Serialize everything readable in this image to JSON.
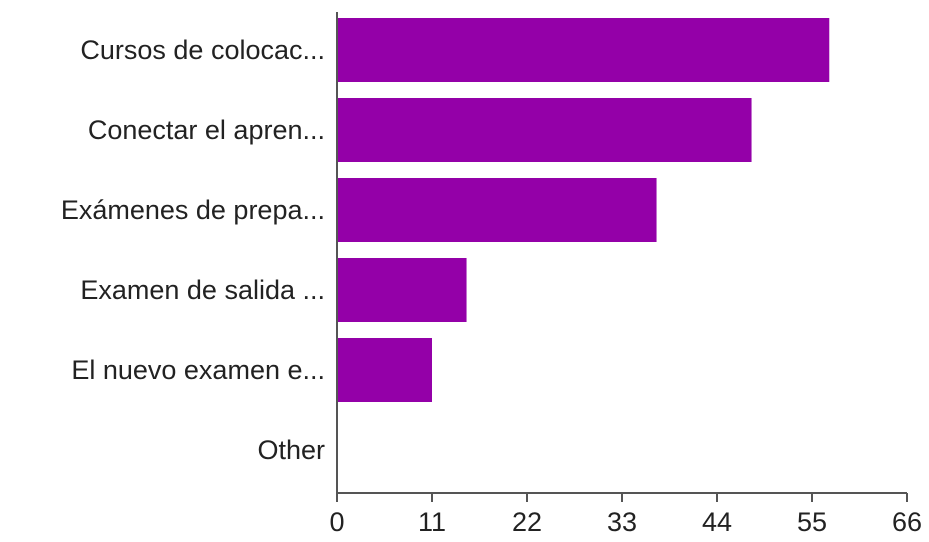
{
  "chart_data": {
    "type": "bar",
    "orientation": "horizontal",
    "categories": [
      "Cursos de colocac...",
      "Conectar el apren...",
      "Exámenes de prepa...",
      "Examen de salida ...",
      "El nuevo examen e...",
      "Other"
    ],
    "values": [
      57,
      48,
      37,
      15,
      11,
      0
    ],
    "xticks": [
      "0",
      "11",
      "22",
      "33",
      "44",
      "55",
      "66"
    ],
    "xlim": [
      0,
      66
    ],
    "grid": false,
    "legend": "none",
    "colors": {
      "bar": "#9400a8",
      "axis": "#555555",
      "text": "#222222"
    }
  }
}
